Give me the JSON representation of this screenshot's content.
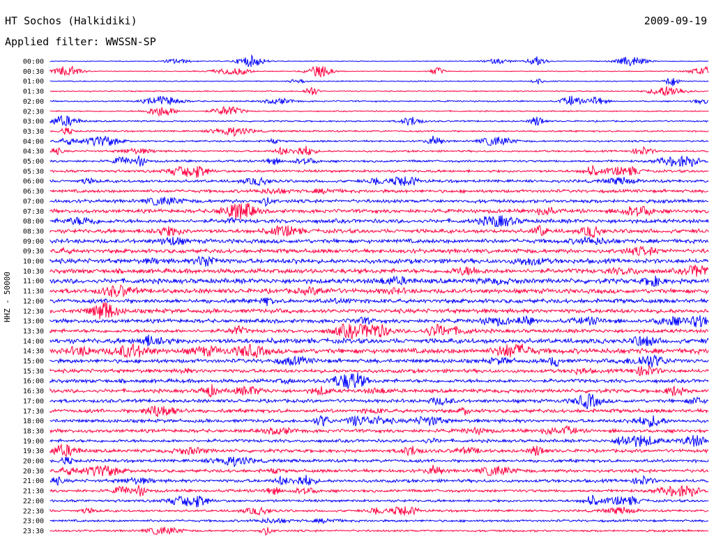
{
  "header": {
    "station": "HT Sochos (Halkidiki)",
    "date": "2009-09-19",
    "filter": "Applied filter: WWSSN-SP"
  },
  "chart_data": {
    "type": "line",
    "title": "HT Sochos (Halkidiki)",
    "ylabel": "HHZ - 50000",
    "xlabel": "",
    "colors": [
      "#0000ff",
      "#ff0040"
    ],
    "grid": false,
    "tick_labels": [
      "00:00",
      "00:30",
      "01:00",
      "01:30",
      "02:00",
      "02:30",
      "03:00",
      "03:30",
      "04:00",
      "04:30",
      "05:00",
      "05:30",
      "06:00",
      "06:30",
      "07:00",
      "07:30",
      "08:00",
      "08:30",
      "09:00",
      "09:30",
      "10:00",
      "10:30",
      "11:00",
      "11:30",
      "12:00",
      "12:30",
      "13:00",
      "13:30",
      "14:00",
      "14:30",
      "15:00",
      "15:30",
      "16:00",
      "16:30",
      "17:00",
      "17:30",
      "18:00",
      "18:30",
      "19:00",
      "19:30",
      "20:00",
      "20:30",
      "21:00",
      "21:30",
      "22:00",
      "22:30",
      "23:00",
      "23:30"
    ],
    "noise_level": [
      0.6,
      0.6,
      0.7,
      0.8,
      1.0,
      0.9,
      1.1,
      1.2,
      1.3,
      1.3,
      1.6,
      1.8,
      2.0,
      2.2,
      2.4,
      2.6,
      2.8,
      2.8,
      2.9,
      2.9,
      3.2,
      3.2,
      3.4,
      3.2,
      3.0,
      3.0,
      2.7,
      2.6,
      3.4,
      3.6,
      2.8,
      2.6,
      2.6,
      2.6,
      2.4,
      2.6,
      2.4,
      2.4,
      2.2,
      2.3,
      2.2,
      2.3,
      2.2,
      2.0,
      1.8,
      1.6,
      1.6,
      1.4
    ]
  }
}
